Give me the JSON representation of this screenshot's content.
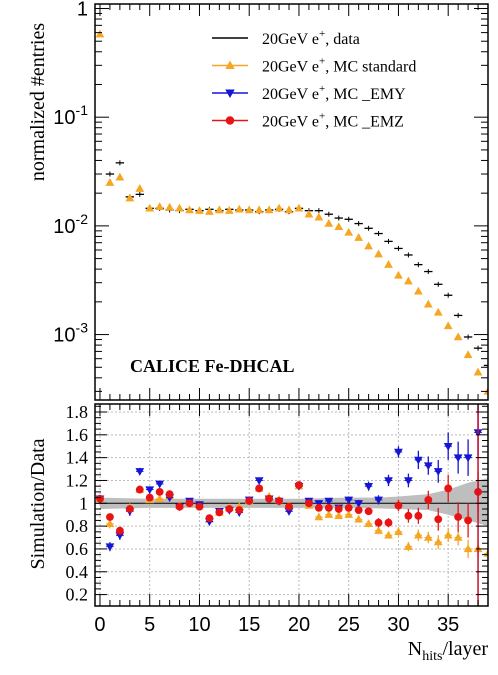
{
  "chart_data": [
    {
      "type": "scatter",
      "panel": "top",
      "ylabel": "normalized #entries",
      "yscale": "log",
      "ylim": [
        0.00025,
        1.1
      ],
      "xlim": [
        -0.5,
        39
      ],
      "annotation": "CALICE Fe-DHCAL",
      "ytick_labels": [
        {
          "value": 1,
          "label": "1"
        },
        {
          "value": 0.1,
          "label": "10^-1"
        },
        {
          "value": 0.01,
          "label": "10^-2"
        },
        {
          "value": 0.001,
          "label": "10^-3"
        }
      ],
      "legend_placement": "top-right",
      "legend": [
        {
          "label_main": "20GeV e",
          "label_sup": "+",
          "label_tail": ", data",
          "color": "#000000",
          "marker": "none"
        },
        {
          "label_main": "20GeV e",
          "label_sup": "+",
          "label_tail": ", MC standard",
          "color": "#f5a623",
          "marker": "triangle-up"
        },
        {
          "label_main": "20GeV e",
          "label_sup": "+",
          "label_tail": ", MC _EMY",
          "color": "#1515d6",
          "marker": "triangle-down"
        },
        {
          "label_main": "20GeV e",
          "label_sup": "+",
          "label_tail": ", MC _EMZ",
          "color": "#e81414",
          "marker": "circle"
        }
      ],
      "series": [
        {
          "name": "data",
          "color": "#000000",
          "x": [
            1,
            2,
            3,
            4,
            5,
            6,
            7,
            8,
            9,
            10,
            11,
            12,
            13,
            14,
            15,
            16,
            17,
            18,
            19,
            20,
            21,
            22,
            23,
            24,
            25,
            26,
            27,
            28,
            29,
            30,
            31,
            32,
            33,
            34,
            35,
            36,
            37,
            38,
            39
          ],
          "y": [
            0.03,
            0.038,
            0.0185,
            0.0195,
            0.0145,
            0.0145,
            0.014,
            0.0138,
            0.0142,
            0.0138,
            0.0142,
            0.0138,
            0.0142,
            0.014,
            0.014,
            0.0135,
            0.014,
            0.0142,
            0.0135,
            0.0145,
            0.0138,
            0.0138,
            0.0128,
            0.0118,
            0.0115,
            0.0105,
            0.0095,
            0.0085,
            0.0072,
            0.0062,
            0.0054,
            0.0044,
            0.0038,
            0.0029,
            0.0023,
            0.0015,
            0.00095,
            0.00075,
            0.00052
          ]
        },
        {
          "name": "MC standard",
          "color": "#f5a623",
          "x": [
            0,
            1,
            2,
            3,
            4,
            5,
            6,
            7,
            8,
            9,
            10,
            11,
            12,
            13,
            14,
            15,
            16,
            17,
            18,
            19,
            20,
            21,
            22,
            23,
            24,
            25,
            26,
            27,
            28,
            29,
            30,
            31,
            32,
            33,
            34,
            35,
            36,
            37,
            38,
            39
          ],
          "y": [
            0.58,
            0.025,
            0.028,
            0.018,
            0.022,
            0.0145,
            0.015,
            0.0148,
            0.0145,
            0.014,
            0.0138,
            0.0135,
            0.014,
            0.0138,
            0.0142,
            0.014,
            0.014,
            0.014,
            0.0145,
            0.014,
            0.0145,
            0.0128,
            0.012,
            0.0105,
            0.0098,
            0.0087,
            0.0078,
            0.0065,
            0.0055,
            0.0044,
            0.0035,
            0.0031,
            0.0025,
            0.0019,
            0.0016,
            0.0012,
            0.00095,
            0.00065,
            0.00045,
            0.0003
          ]
        }
      ]
    },
    {
      "type": "scatter",
      "panel": "bottom",
      "xlabel_main": "N",
      "xlabel_sub": "hits",
      "xlabel_tail": "/layer",
      "ylabel": "Simulation/Data",
      "xlim": [
        -0.5,
        39
      ],
      "ylim": [
        0.1,
        1.87
      ],
      "grid": true,
      "reference_line": 1,
      "vertical_line_x": 38,
      "vertical_line_color": "#c8102e",
      "xtick_labels": [
        "0",
        "5",
        "10",
        "15",
        "20",
        "25",
        "30",
        "35"
      ],
      "ytick_labels": [
        "0.2",
        "0.4",
        "0.6",
        "0.8",
        "1",
        "1.2",
        "1.4",
        "1.6",
        "1.8"
      ],
      "uncertainty_band": {
        "x": [
          0,
          5,
          10,
          15,
          20,
          25,
          28,
          30,
          33,
          35,
          37,
          39
        ],
        "lo": [
          0.95,
          0.96,
          0.96,
          0.96,
          0.96,
          0.96,
          0.955,
          0.95,
          0.94,
          0.9,
          0.85,
          0.8
        ],
        "hi": [
          1.05,
          1.04,
          1.04,
          1.04,
          1.04,
          1.05,
          1.05,
          1.06,
          1.08,
          1.12,
          1.18,
          1.22
        ]
      },
      "series": [
        {
          "name": "MC standard",
          "color": "#f5a623",
          "x": [
            0,
            1,
            2,
            3,
            4,
            5,
            6,
            7,
            8,
            9,
            10,
            11,
            12,
            13,
            14,
            15,
            16,
            17,
            18,
            19,
            20,
            21,
            22,
            23,
            24,
            25,
            26,
            27,
            28,
            29,
            30,
            31,
            32,
            33,
            34,
            35,
            36,
            37,
            38,
            39
          ],
          "y": [
            1.04,
            0.82,
            0.74,
            0.96,
            1.12,
            1.03,
            1.04,
            1.06,
            0.98,
            1.0,
            0.99,
            0.86,
            0.92,
            0.96,
            0.97,
            1.02,
            1.13,
            1.06,
            1.03,
            0.98,
            1.15,
            0.98,
            0.88,
            0.9,
            0.89,
            0.9,
            0.86,
            0.82,
            0.76,
            0.72,
            0.75,
            0.62,
            0.72,
            0.7,
            0.66,
            0.72,
            0.7,
            0.6,
            0.6,
            0.56
          ],
          "yerr": [
            0.02,
            0.04,
            0.04,
            0.04,
            0.03,
            0.02,
            0.02,
            0.02,
            0.02,
            0.02,
            0.02,
            0.02,
            0.02,
            0.02,
            0.02,
            0.02,
            0.02,
            0.02,
            0.02,
            0.02,
            0.02,
            0.02,
            0.02,
            0.02,
            0.02,
            0.02,
            0.03,
            0.03,
            0.03,
            0.03,
            0.04,
            0.04,
            0.05,
            0.05,
            0.06,
            0.06,
            0.07,
            0.08,
            0.08,
            0.08
          ]
        },
        {
          "name": "MC _EMY",
          "color": "#1515d6",
          "x": [
            0,
            1,
            2,
            3,
            4,
            5,
            6,
            7,
            8,
            9,
            10,
            11,
            12,
            13,
            14,
            15,
            16,
            17,
            18,
            19,
            20,
            21,
            22,
            23,
            24,
            25,
            26,
            27,
            28,
            29,
            30,
            31,
            32,
            33,
            34,
            35,
            36,
            37,
            38
          ],
          "y": [
            1.04,
            0.62,
            0.72,
            0.93,
            1.28,
            1.12,
            1.17,
            1.05,
            0.97,
            1.02,
            0.99,
            0.84,
            0.93,
            0.94,
            0.92,
            1.03,
            1.2,
            1.04,
            1.02,
            0.93,
            1.15,
            1.02,
            1.0,
            1.02,
            0.96,
            1.03,
            1.0,
            1.15,
            1.03,
            1.2,
            1.45,
            1.2,
            1.38,
            1.33,
            1.28,
            1.5,
            1.4,
            1.4,
            1.62
          ],
          "yerr": [
            0.02,
            0.04,
            0.04,
            0.04,
            0.03,
            0.02,
            0.02,
            0.02,
            0.02,
            0.02,
            0.02,
            0.02,
            0.02,
            0.02,
            0.02,
            0.02,
            0.02,
            0.02,
            0.02,
            0.02,
            0.02,
            0.02,
            0.02,
            0.02,
            0.02,
            0.02,
            0.03,
            0.04,
            0.04,
            0.05,
            0.05,
            0.06,
            0.08,
            0.08,
            0.1,
            0.12,
            0.14,
            0.16,
            0.2
          ]
        },
        {
          "name": "MC _EMZ",
          "color": "#e81414",
          "x": [
            0,
            1,
            2,
            3,
            4,
            5,
            6,
            7,
            8,
            9,
            10,
            11,
            12,
            13,
            14,
            15,
            16,
            17,
            18,
            19,
            20,
            21,
            22,
            23,
            24,
            25,
            26,
            27,
            28,
            29,
            30,
            31,
            32,
            33,
            34,
            35,
            36,
            37,
            38
          ],
          "y": [
            1.04,
            0.88,
            0.76,
            0.95,
            1.12,
            1.05,
            1.1,
            1.08,
            0.97,
            1.0,
            0.97,
            0.87,
            0.92,
            0.95,
            0.94,
            1.02,
            1.13,
            1.04,
            1.02,
            0.97,
            1.16,
            1.0,
            0.96,
            0.96,
            0.95,
            0.96,
            0.94,
            0.93,
            0.83,
            0.83,
            0.98,
            0.89,
            0.89,
            1.03,
            0.86,
            1.13,
            0.88,
            0.85,
            1.1
          ],
          "yerr": [
            0.02,
            0.03,
            0.03,
            0.03,
            0.03,
            0.02,
            0.02,
            0.02,
            0.02,
            0.02,
            0.02,
            0.02,
            0.02,
            0.02,
            0.02,
            0.02,
            0.02,
            0.02,
            0.02,
            0.02,
            0.02,
            0.02,
            0.02,
            0.02,
            0.02,
            0.02,
            0.03,
            0.03,
            0.04,
            0.04,
            0.05,
            0.06,
            0.07,
            0.08,
            0.1,
            0.12,
            0.13,
            0.15,
            0.18
          ]
        }
      ]
    }
  ]
}
